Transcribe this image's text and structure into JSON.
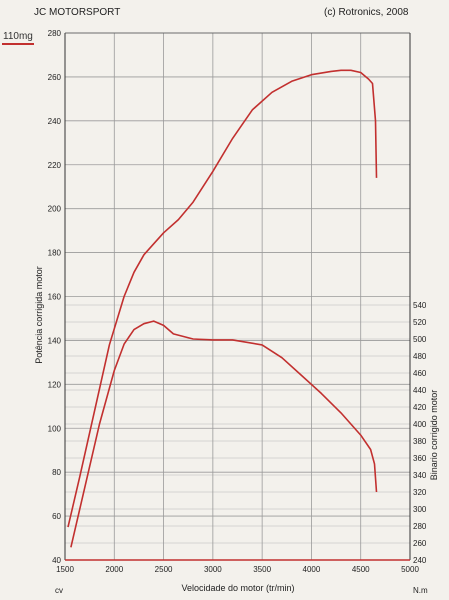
{
  "header": {
    "left": "JC MOTORSPORT",
    "right": "(c) Rotronics, 2008",
    "stamp": "110mg"
  },
  "chart_data": {
    "type": "line",
    "title": "",
    "xlabel": "Velocidade do motor (tr/min)",
    "ylabel_left": "Potência corrigida  motor",
    "ylabel_right": "Binario corrigido motor",
    "unit_left": "cv",
    "unit_right": "N.m",
    "xlim": [
      1500,
      5000
    ],
    "ylim_left": [
      40,
      280
    ],
    "ylim_right": [
      240,
      540
    ],
    "x_ticks": [
      1500,
      2000,
      2500,
      3000,
      3500,
      4000,
      4500,
      5000
    ],
    "y_ticks_left": [
      40,
      60,
      80,
      100,
      120,
      140,
      160,
      180,
      200,
      220,
      240,
      260,
      280
    ],
    "y_ticks_right": [
      240,
      260,
      280,
      300,
      320,
      340,
      360,
      380,
      400,
      420,
      440,
      460,
      480,
      500,
      520,
      540
    ],
    "grid": true,
    "line_color": "#c2302f",
    "series": [
      {
        "axis": "left",
        "x": [
          1530,
          1650,
          1800,
          1950,
          2100,
          2200,
          2300,
          2400,
          2500,
          2650,
          2800,
          3000,
          3200,
          3400,
          3600,
          3800,
          4000,
          4200,
          4300,
          4400,
          4500,
          4580,
          4620,
          4650,
          4660
        ],
        "values": [
          55,
          78,
          108,
          138,
          160,
          171,
          179,
          184,
          189,
          195,
          203,
          217,
          232,
          245,
          253,
          258,
          261,
          262.5,
          263,
          263,
          262,
          259,
          257,
          240,
          214
        ]
      },
      {
        "axis": "right",
        "x": [
          1560,
          1700,
          1850,
          2000,
          2100,
          2200,
          2300,
          2400,
          2500,
          2600,
          2800,
          3000,
          3200,
          3500,
          3700,
          3900,
          4100,
          4300,
          4500,
          4600,
          4640,
          4660
        ],
        "values": [
          255,
          325,
          400,
          463,
          494,
          511,
          518,
          521,
          516,
          506,
          500,
          499,
          499,
          493,
          478,
          457,
          436,
          413,
          387,
          370,
          353,
          320
        ]
      }
    ]
  }
}
